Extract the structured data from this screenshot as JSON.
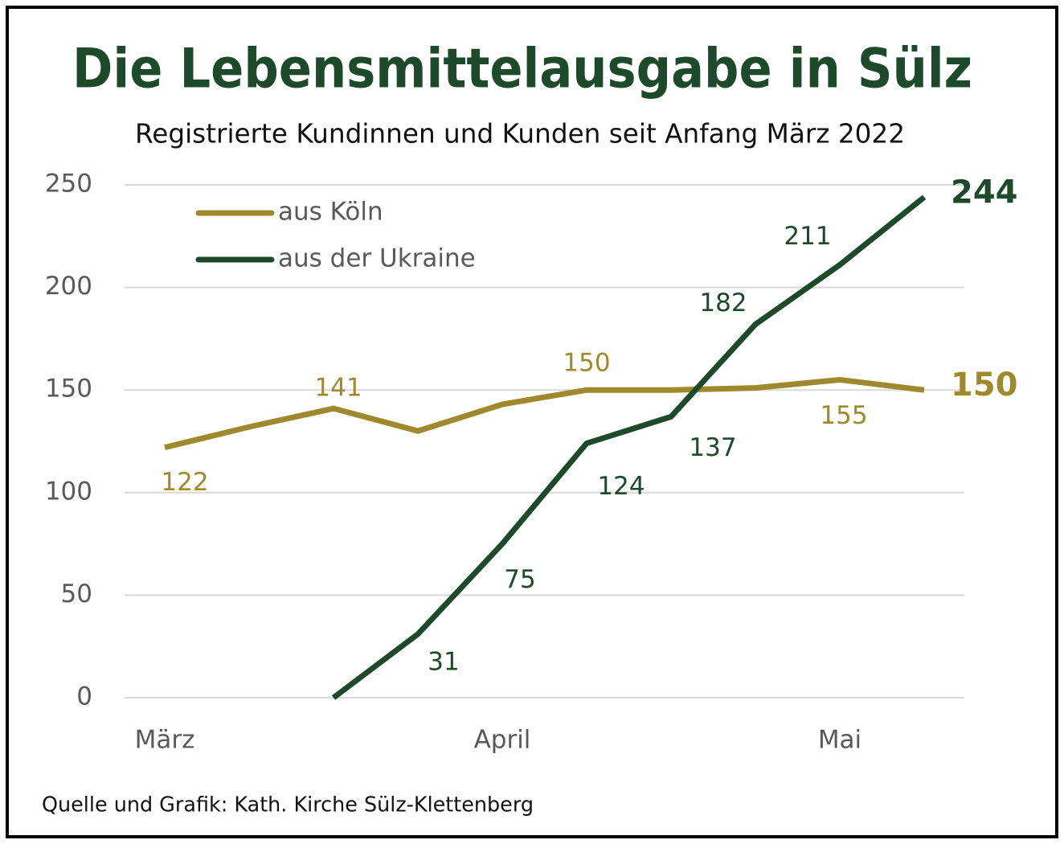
{
  "chart_data": {
    "type": "line",
    "title": "Die Lebensmittelausgabe in Sülz",
    "subtitle": "Registrierte Kundinnen und Kunden seit Anfang März 2022",
    "source": "Quelle und Grafik: Kath. Kirche Sülz-Klettenberg",
    "categories": [
      "März",
      null,
      null,
      null,
      "April",
      null,
      null,
      null,
      "Mai",
      null
    ],
    "series": [
      {
        "name": "aus Köln",
        "color": "#9e8a2c",
        "values": [
          122,
          132,
          141,
          130,
          143,
          150,
          150,
          151,
          155,
          150
        ]
      },
      {
        "name": "aus der Ukraine",
        "color": "#1d4a2a",
        "values": [
          null,
          null,
          0,
          31,
          75,
          124,
          137,
          182,
          211,
          244
        ]
      }
    ],
    "ylim": [
      0,
      250
    ],
    "yticks": [
      0,
      50,
      100,
      150,
      200,
      250
    ],
    "grid": true,
    "legend": "upper left"
  }
}
